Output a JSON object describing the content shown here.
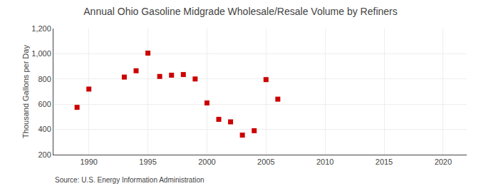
{
  "chart_data": {
    "type": "scatter",
    "title": "Annual Ohio Gasoline Midgrade Wholesale/Resale Volume by Refiners",
    "y_label": "Thousand Gallons per Day",
    "source": "Source: U.S. Energy Information Administration",
    "x": [
      1989,
      1990,
      1993,
      1994,
      1995,
      1996,
      1997,
      1998,
      1999,
      2000,
      2001,
      2002,
      2003,
      2004,
      2005,
      2006
    ],
    "values": [
      575,
      720,
      815,
      865,
      1005,
      820,
      830,
      835,
      800,
      610,
      480,
      460,
      355,
      390,
      795,
      640
    ],
    "color": "#cc0000",
    "marker": "square",
    "xlim": [
      1987,
      2022
    ],
    "xticks": [
      1990,
      1995,
      2000,
      2005,
      2010,
      2015,
      2020
    ],
    "ylim": [
      200,
      1200
    ],
    "yticks": [
      200,
      400,
      600,
      800,
      {
        "value": 1000,
        "label": "1,000"
      },
      {
        "value": 1200,
        "label": "1,200"
      }
    ],
    "grid": true
  }
}
